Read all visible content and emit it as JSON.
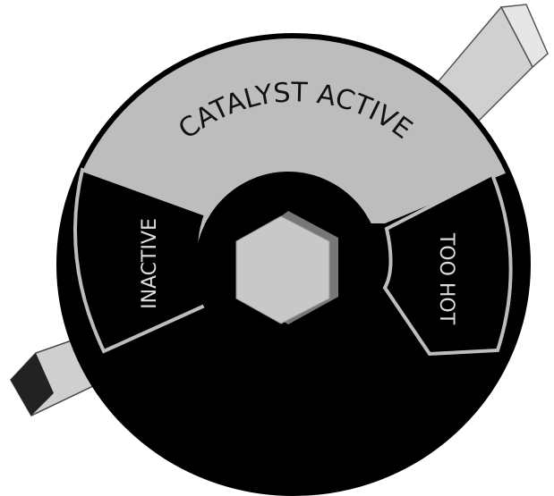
{
  "segments": {
    "top": {
      "label": "CATALYST ACTIVE"
    },
    "left": {
      "label": "INACTIVE"
    },
    "right": {
      "label": "TOO HOT"
    }
  }
}
